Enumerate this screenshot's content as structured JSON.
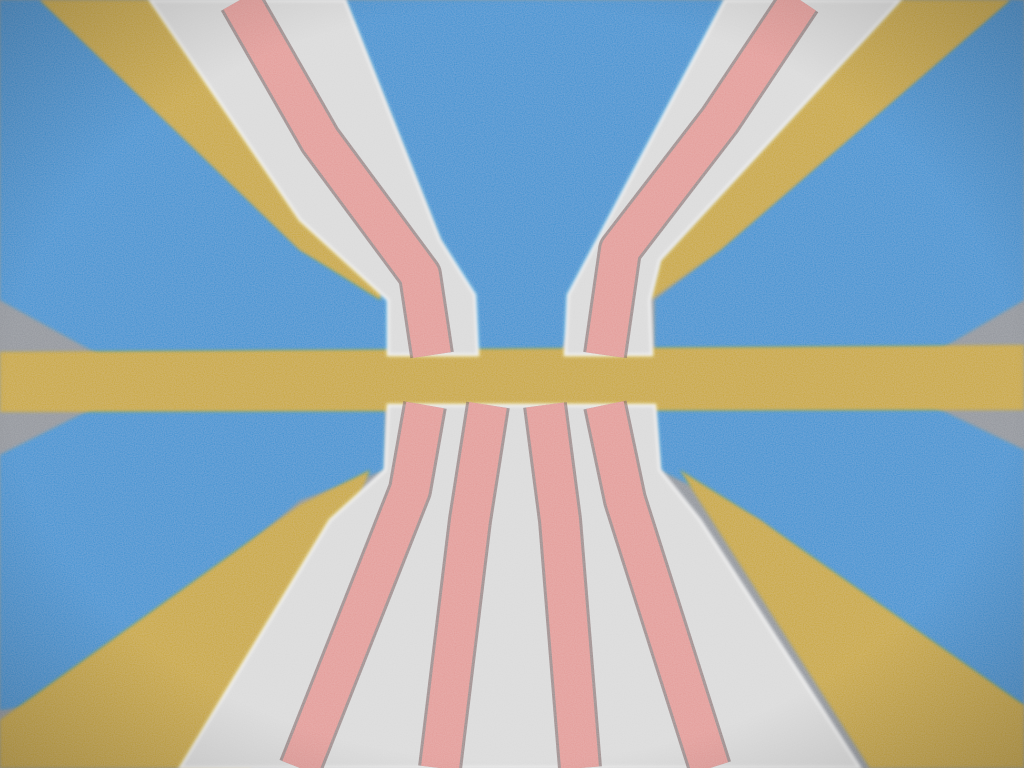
{
  "image": {
    "kind": "false-colored electron micrograph of gate electrodes",
    "palette": {
      "background_gray": "#8f939a",
      "substrate_blue": "#2f8fd0",
      "gold_lead": "#c8a52c",
      "electrode_white": "#dadada",
      "electrode_pink": "#e39a96",
      "edge_dark": "#6b4a4a"
    },
    "regions": [
      "gray-background",
      "blue-substrate",
      "gold-leads",
      "white-electrodes",
      "pink-gate-fingers"
    ]
  }
}
